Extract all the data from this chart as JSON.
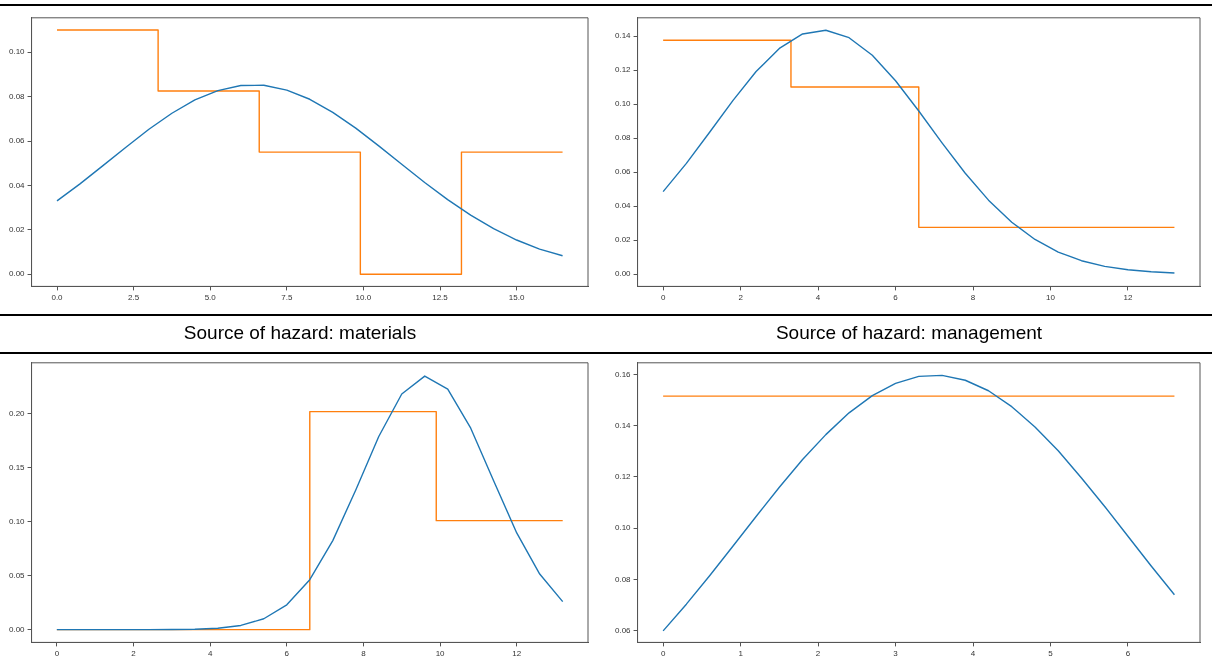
{
  "chart_data": [
    {
      "type": "line",
      "title": "Source of hazard: materials",
      "grid": false,
      "xlim": [
        -0.83,
        17.33
      ],
      "ylim": [
        -0.0055,
        0.1155
      ],
      "xticks": [
        {
          "value": 0,
          "label": "0.0"
        },
        {
          "value": 2.5,
          "label": "2.5"
        },
        {
          "value": 5,
          "label": "5.0"
        },
        {
          "value": 7.5,
          "label": "7.5"
        },
        {
          "value": 10,
          "label": "10.0"
        },
        {
          "value": 12.5,
          "label": "12.5"
        },
        {
          "value": 15,
          "label": "15.0"
        }
      ],
      "yticks": [
        {
          "value": 0,
          "label": "0.00"
        },
        {
          "value": 0.02,
          "label": "0.02"
        },
        {
          "value": 0.04,
          "label": "0.04"
        },
        {
          "value": 0.06,
          "label": "0.06"
        },
        {
          "value": 0.08,
          "label": "0.08"
        },
        {
          "value": 0.1,
          "label": "0.10"
        }
      ],
      "series": [
        {
          "type": "line",
          "color": "#1f77b4",
          "x": [
            0,
            0.75,
            1.5,
            2.25,
            3,
            3.75,
            4.5,
            5.25,
            6,
            6.75,
            7.5,
            8.25,
            9,
            9.75,
            10.5,
            11.25,
            12,
            12.75,
            13.5,
            14.25,
            15,
            15.75,
            16.5
          ],
          "values": [
            0.033,
            0.0407,
            0.0489,
            0.0572,
            0.0653,
            0.0725,
            0.0785,
            0.0827,
            0.085,
            0.0851,
            0.0829,
            0.0788,
            0.0729,
            0.0658,
            0.0578,
            0.0495,
            0.0413,
            0.0336,
            0.0266,
            0.0205,
            0.0154,
            0.0113,
            0.0083
          ]
        },
        {
          "type": "step",
          "color": "#ff7f0e",
          "x": [
            0,
            3.3,
            6.6,
            9.9,
            13.2,
            16.5
          ],
          "values": [
            0.11,
            0.0825,
            0.055,
            0,
            0.055,
            0.055
          ]
        }
      ]
    },
    {
      "type": "line",
      "title": "Source of hazard: management",
      "grid": false,
      "xlim": [
        -0.66,
        13.86
      ],
      "ylim": [
        -0.0072,
        0.1507
      ],
      "xticks": [
        0,
        2,
        4,
        6,
        8,
        10,
        12
      ],
      "yticks": [
        {
          "value": 0,
          "label": "0.00"
        },
        {
          "value": 0.02,
          "label": "0.02"
        },
        {
          "value": 0.04,
          "label": "0.04"
        },
        {
          "value": 0.06,
          "label": "0.06"
        },
        {
          "value": 0.08,
          "label": "0.08"
        },
        {
          "value": 0.1,
          "label": "0.10"
        },
        {
          "value": 0.12,
          "label": "0.12"
        },
        {
          "value": 0.14,
          "label": "0.14"
        }
      ],
      "series": [
        {
          "type": "line",
          "color": "#1f77b4",
          "x": [
            0,
            0.6,
            1.2,
            1.8,
            2.4,
            3,
            3.6,
            4.2,
            4.8,
            5.4,
            6,
            6.6,
            7.2,
            7.8,
            8.4,
            9,
            9.6,
            10.2,
            10.8,
            11.4,
            12,
            12.6,
            13.2
          ],
          "values": [
            0.0485,
            0.0651,
            0.0834,
            0.102,
            0.1191,
            0.1327,
            0.1412,
            0.1434,
            0.139,
            0.1287,
            0.1137,
            0.0959,
            0.0772,
            0.0593,
            0.0435,
            0.0305,
            0.0204,
            0.013,
            0.0079,
            0.0046,
            0.0026,
            0.0014,
            0.0007
          ]
        },
        {
          "type": "step",
          "color": "#ff7f0e",
          "x": [
            0,
            3.3,
            6.6,
            13.2
          ],
          "values": [
            0.1375,
            0.11,
            0.0275,
            0.0275
          ]
        }
      ]
    },
    {
      "type": "line",
      "grid": false,
      "xlim": [
        -0.66,
        13.86
      ],
      "ylim": [
        -0.0118,
        0.2472
      ],
      "xticks": [
        0,
        2,
        4,
        6,
        8,
        10,
        12
      ],
      "yticks": [
        {
          "value": 0,
          "label": "0.00"
        },
        {
          "value": 0.05,
          "label": "0.05"
        },
        {
          "value": 0.1,
          "label": "0.10"
        },
        {
          "value": 0.15,
          "label": "0.15"
        },
        {
          "value": 0.2,
          "label": "0.20"
        }
      ],
      "series": [
        {
          "type": "line",
          "color": "#1f77b4",
          "x": [
            0,
            1.2,
            2.4,
            3,
            3.6,
            4.2,
            4.8,
            5.4,
            6,
            6.6,
            7.2,
            7.8,
            8.4,
            9,
            9.6,
            10.2,
            10.8,
            11.4,
            12,
            12.6,
            13.2
          ],
          "values": [
            0,
            0,
            0,
            0.0001,
            0.0004,
            0.0013,
            0.0039,
            0.0101,
            0.023,
            0.0463,
            0.0825,
            0.1294,
            0.1789,
            0.2183,
            0.2349,
            0.2229,
            0.1866,
            0.1377,
            0.0896,
            0.0515,
            0.026
          ]
        },
        {
          "type": "step",
          "color": "#ff7f0e",
          "x": [
            0,
            6.6,
            9.9,
            13.2
          ],
          "values": [
            0,
            0.202,
            0.101,
            0.101
          ]
        }
      ]
    },
    {
      "type": "line",
      "grid": false,
      "xlim": [
        -0.33,
        6.93
      ],
      "ylim": [
        0.0555,
        0.1645
      ],
      "xticks": [
        0,
        1,
        2,
        3,
        4,
        5,
        6
      ],
      "yticks": [
        {
          "value": 0.06,
          "label": "0.06"
        },
        {
          "value": 0.08,
          "label": "0.08"
        },
        {
          "value": 0.1,
          "label": "0.10"
        },
        {
          "value": 0.12,
          "label": "0.12"
        },
        {
          "value": 0.14,
          "label": "0.14"
        },
        {
          "value": 0.16,
          "label": "0.16"
        }
      ],
      "series": [
        {
          "type": "line",
          "color": "#1f77b4",
          "x": [
            0,
            0.3,
            0.6,
            0.9,
            1.2,
            1.5,
            1.8,
            2.1,
            2.4,
            2.7,
            3,
            3.3,
            3.6,
            3.9,
            4.2,
            4.5,
            4.8,
            5.1,
            5.4,
            5.7,
            6,
            6.3,
            6.6
          ],
          "values": [
            0.06,
            0.0704,
            0.0815,
            0.093,
            0.1046,
            0.116,
            0.1268,
            0.1365,
            0.145,
            0.1517,
            0.1565,
            0.1592,
            0.1596,
            0.1577,
            0.1536,
            0.1474,
            0.1395,
            0.1302,
            0.1196,
            0.1085,
            0.0969,
            0.0853,
            0.0741
          ]
        },
        {
          "type": "step",
          "color": "#ff7f0e",
          "x": [
            0,
            6.6
          ],
          "values": [
            0.1515,
            0.1515
          ]
        }
      ]
    }
  ]
}
